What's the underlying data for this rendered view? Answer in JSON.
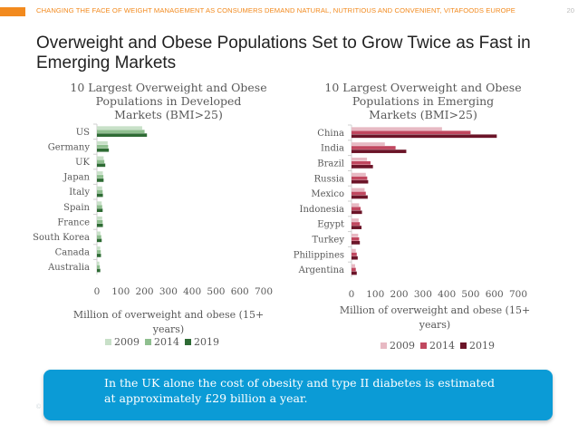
{
  "header": {
    "text": "CHANGING THE FACE OF WEIGHT MANAGEMENT AS CONSUMERS DEMAND NATURAL, NUTRITIOUS AND CONVENIENT, VITAFOODS EUROPE",
    "page_number": "20"
  },
  "title": "Overweight and Obese Populations Set to Grow Twice as Fast in Emerging Markets",
  "colors": {
    "accent": "#f28a1e",
    "header_text": "#f28a1e",
    "callout": "#0b9bd6",
    "dev_2009": "#c8e0c8",
    "dev_2014": "#8fbf8f",
    "dev_2019": "#2e6b34",
    "em_2009": "#e7b9c3",
    "em_2014": "#c0475f",
    "em_2019": "#6b1428"
  },
  "chart_data": [
    {
      "type": "bar",
      "orientation": "horizontal",
      "title": "10 Largest Overweight and Obese Populations in Developed Markets (BMI>25)",
      "title_lines": [
        "10 Largest Overweight and Obese",
        "Populations in Developed",
        "Markets (BMI>25)"
      ],
      "categories": [
        "US",
        "Germany",
        "UK",
        "Japan",
        "Italy",
        "Spain",
        "France",
        "South Korea",
        "Canada",
        "Australia"
      ],
      "series": [
        {
          "name": "2009",
          "values": [
            190,
            45,
            28,
            25,
            22,
            20,
            22,
            15,
            14,
            10
          ]
        },
        {
          "name": "2014",
          "values": [
            200,
            47,
            31,
            27,
            24,
            22,
            24,
            18,
            16,
            12
          ]
        },
        {
          "name": "2019",
          "values": [
            210,
            50,
            35,
            28,
            25,
            24,
            25,
            20,
            17,
            14
          ]
        }
      ],
      "xlabel": "Million of overweight and obese (15+ years)",
      "xlabel_lines": [
        "Million of overweight and obese (15+",
        "years)"
      ],
      "xlim": [
        0,
        700
      ],
      "xticks": [
        "0",
        "100",
        "200",
        "300",
        "400",
        "500",
        "600",
        "700"
      ],
      "legend": [
        "2009",
        "2014",
        "2019"
      ],
      "legend_position": "bottom"
    },
    {
      "type": "bar",
      "orientation": "horizontal",
      "title": "10 Largest Overweight and Obese Populations in Emerging Markets (BMI>25)",
      "title_lines": [
        "10 Largest Overweight and Obese",
        "Populations in Emerging",
        "Markets (BMI>25)"
      ],
      "categories": [
        "China",
        "India",
        "Brazil",
        "Russia",
        "Mexico",
        "Indonesia",
        "Egypt",
        "Turkey",
        "Philippines",
        "Argentina"
      ],
      "series": [
        {
          "name": "2009",
          "values": [
            380,
            140,
            65,
            60,
            55,
            32,
            30,
            28,
            18,
            15
          ]
        },
        {
          "name": "2014",
          "values": [
            500,
            185,
            80,
            66,
            60,
            38,
            35,
            32,
            22,
            18
          ]
        },
        {
          "name": "2019",
          "values": [
            610,
            230,
            90,
            70,
            68,
            44,
            42,
            35,
            26,
            22
          ]
        }
      ],
      "xlabel": "Million of overweight and obese (15+ years)",
      "xlabel_lines": [
        "Million of overweight and obese (15+",
        "years)"
      ],
      "xlim": [
        0,
        700
      ],
      "xticks": [
        "0",
        "100",
        "200",
        "300",
        "400",
        "500",
        "600",
        "700"
      ],
      "legend": [
        "2009",
        "2014",
        "2019"
      ],
      "legend_position": "bottom"
    }
  ],
  "callout": {
    "line1": "In the UK alone the cost of obesity and type II diabetes is estimated",
    "line2": "at approximately £29 billion a year."
  },
  "footer": {
    "mark": "©"
  }
}
